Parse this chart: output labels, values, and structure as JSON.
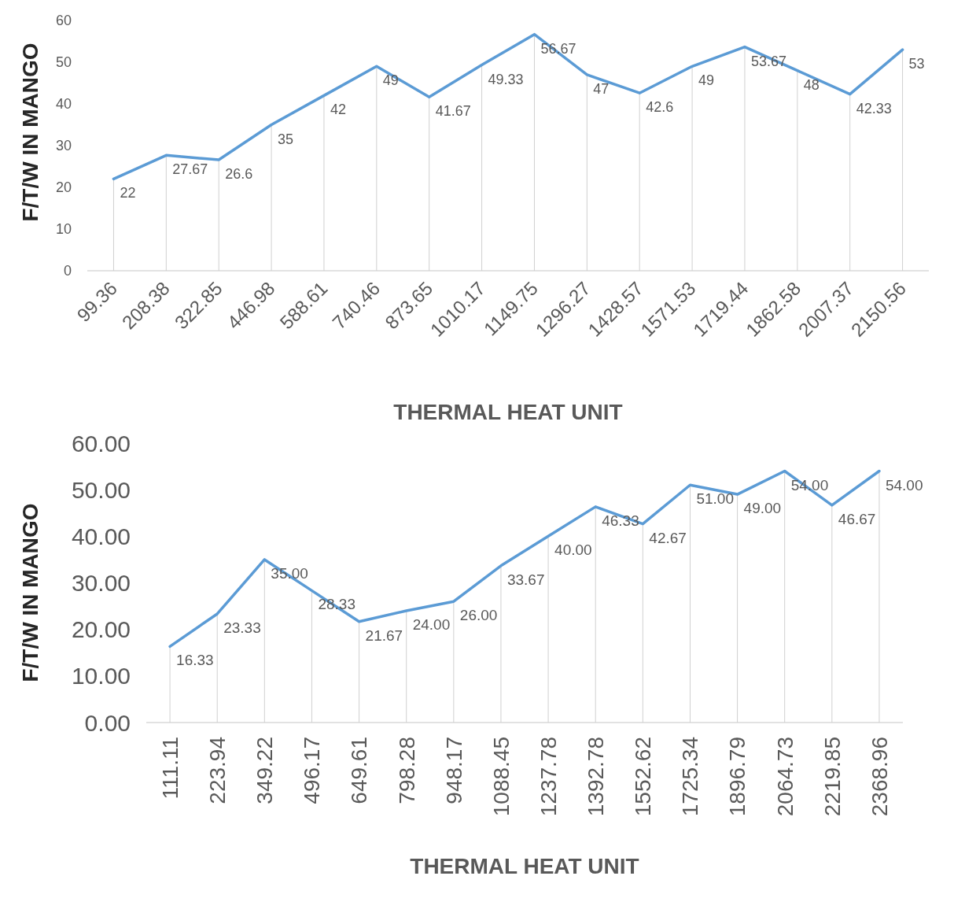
{
  "chart_data": [
    {
      "type": "line",
      "xlabel": "THERMAL HEAT UNIT",
      "ylabel": "F/T/W IN MANGO",
      "categories": [
        "99.36",
        "208.38",
        "322.85",
        "446.98",
        "588.61",
        "740.46",
        "873.65",
        "1010.17",
        "1149.75",
        "1296.27",
        "1428.57",
        "1571.53",
        "1719.44",
        "1862.58",
        "2007.37",
        "2150.56"
      ],
      "series": [
        {
          "color": "#5b9bd5",
          "values": [
            22,
            27.67,
            26.6,
            35,
            42,
            49,
            41.67,
            49.33,
            56.67,
            47,
            42.6,
            49,
            53.67,
            48,
            42.33,
            53
          ]
        }
      ],
      "ylim": [
        0,
        60
      ],
      "yticks": [
        0,
        10,
        20,
        30,
        40,
        50,
        60
      ],
      "grid": "x",
      "marker": "none",
      "data_labels": true
    },
    {
      "type": "line",
      "xlabel": "THERMAL HEAT UNIT",
      "ylabel": "F/T/W IN MANGO",
      "categories": [
        "111.11",
        "223.94",
        "349.22",
        "496.17",
        "649.61",
        "798.28",
        "948.17",
        "1088.45",
        "1237.78",
        "1392.78",
        "1552.62",
        "1725.34",
        "1896.79",
        "2064.73",
        "2219.85",
        "2368.96"
      ],
      "series": [
        {
          "color": "#5b9bd5",
          "values": [
            16.33,
            23.33,
            35,
            28.33,
            21.67,
            24,
            26,
            33.67,
            40,
            46.33,
            42.67,
            51,
            49,
            54,
            46.67,
            54
          ],
          "value_labels": [
            "16.33",
            "23.33",
            "35.00",
            "28.33",
            "21.67",
            "24.00",
            "26.00",
            "33.67",
            "40.00",
            "46.33",
            "42.67",
            "51.00",
            "49.00",
            "54.00",
            "46.67",
            "54.00"
          ]
        }
      ],
      "ylim": [
        0,
        60
      ],
      "yticks": [
        {
          "value": 0,
          "label": "0.00"
        },
        {
          "value": 10,
          "label": "10.00"
        },
        {
          "value": 20,
          "label": "20.00"
        },
        {
          "value": 30,
          "label": "30.00"
        },
        {
          "value": 40,
          "label": "40.00"
        },
        {
          "value": 50,
          "label": "50.00"
        },
        {
          "value": 60,
          "label": "60.00"
        }
      ],
      "grid": "x",
      "marker": "none"
    }
  ]
}
